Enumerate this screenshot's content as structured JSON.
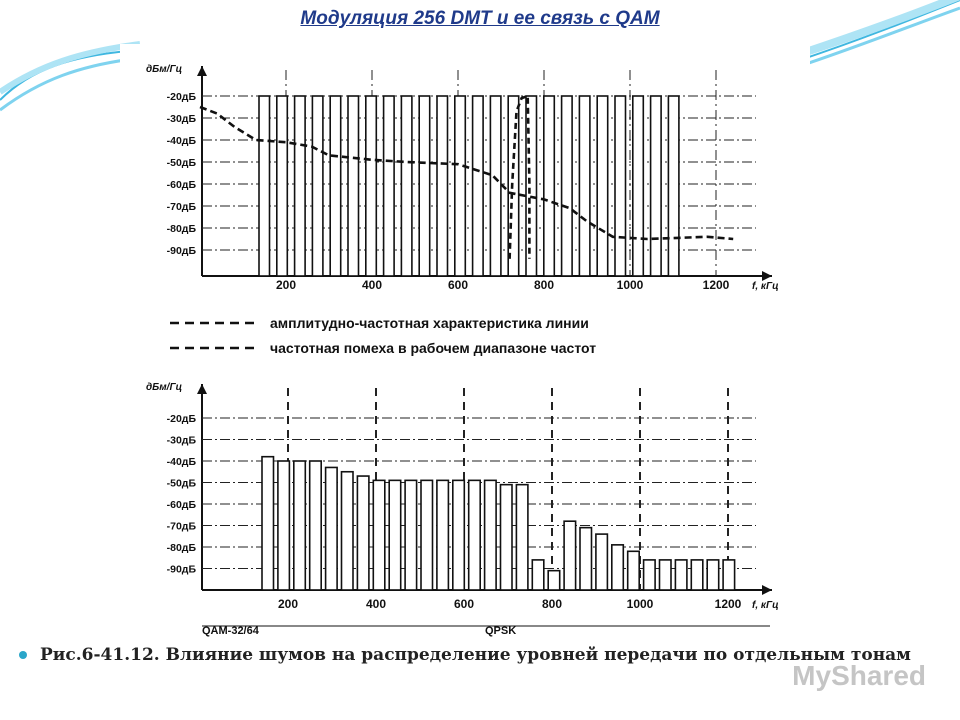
{
  "slide": {
    "title": "Модуляция 256 DMT и ее связь с QAM",
    "caption": "Рис.6-41.12. Влияние шумов на распределение уровней передачи по отдельным тонам",
    "watermark": "MyShared"
  },
  "legend": {
    "line1": "амплитудно-частотная характеристика линии",
    "line2": "частотная помеха в рабочем диапазоне частот"
  },
  "chart_data": [
    {
      "type": "bar",
      "ylabel": "дБм/Гц",
      "xlabel": "f, кГц",
      "y_ticks": [
        "-20дБ",
        "-30дБ",
        "-40дБ",
        "-50дБ",
        "-60дБ",
        "-70дБ",
        "-80дБ",
        "-90дБ"
      ],
      "x_ticks": [
        "200",
        "400",
        "600",
        "800",
        "1000",
        "1200"
      ],
      "bars_level_db": [
        -20,
        -20,
        -20,
        -20,
        -20,
        -20,
        -20,
        -20,
        -20,
        -20,
        -20,
        -20,
        -20,
        -20,
        -20,
        -20,
        -20,
        -20,
        -20,
        -20,
        -20,
        -20,
        -20,
        -20
      ],
      "line_response": [
        {
          "x": 0,
          "y": -25
        },
        {
          "x": 40,
          "y": -28
        },
        {
          "x": 80,
          "y": -34
        },
        {
          "x": 130,
          "y": -40
        },
        {
          "x": 200,
          "y": -41
        },
        {
          "x": 260,
          "y": -43
        },
        {
          "x": 300,
          "y": -47
        },
        {
          "x": 400,
          "y": -49
        },
        {
          "x": 480,
          "y": -50
        },
        {
          "x": 600,
          "y": -51
        },
        {
          "x": 680,
          "y": -56
        },
        {
          "x": 720,
          "y": -64
        },
        {
          "x": 800,
          "y": -67
        },
        {
          "x": 860,
          "y": -71
        },
        {
          "x": 900,
          "y": -77
        },
        {
          "x": 960,
          "y": -84
        },
        {
          "x": 1040,
          "y": -85
        },
        {
          "x": 1180,
          "y": -84
        },
        {
          "x": 1240,
          "y": -85
        }
      ],
      "interference": [
        {
          "x": 720,
          "y": -94
        },
        {
          "x": 726,
          "y": -60
        },
        {
          "x": 736,
          "y": -27
        },
        {
          "x": 748,
          "y": -21
        },
        {
          "x": 762,
          "y": -20
        },
        {
          "x": 766,
          "y": -60
        },
        {
          "x": 766,
          "y": -94
        }
      ]
    },
    {
      "type": "bar",
      "ylabel": "дБм/Гц",
      "xlabel": "f, кГц",
      "y_ticks": [
        "-20дБ",
        "-30дБ",
        "-40дБ",
        "-50дБ",
        "-60дБ",
        "-70дБ",
        "-80дБ",
        "-90дБ"
      ],
      "x_ticks": [
        "200",
        "400",
        "600",
        "800",
        "1000",
        "1200"
      ],
      "bottom_labels": [
        "QAM-32/64",
        "QPSK"
      ],
      "bars_level_db": [
        -38,
        -40,
        -40,
        -40,
        -43,
        -45,
        -47,
        -49,
        -49,
        -49,
        -49,
        -49,
        -49,
        -49,
        -49,
        -51,
        -51,
        -86,
        -91,
        -68,
        -71,
        -74,
        -79,
        -82,
        -86,
        -86,
        -86,
        -86,
        -86,
        -86
      ]
    }
  ]
}
